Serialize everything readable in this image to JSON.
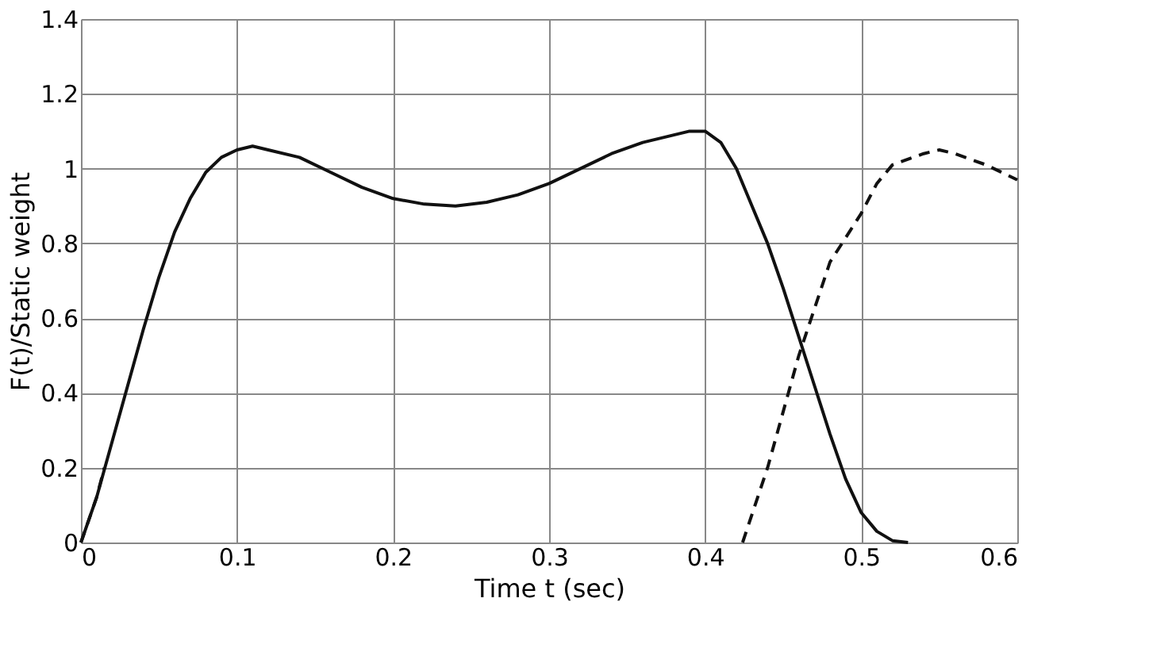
{
  "chart_data": {
    "type": "line",
    "xlabel": "Time t (sec)",
    "ylabel": "F(t)/Static weight",
    "xlim": [
      0,
      0.6
    ],
    "ylim": [
      0,
      1.4
    ],
    "xticks": [
      0,
      0.1,
      0.2,
      0.3,
      0.4,
      0.5,
      0.6
    ],
    "yticks": [
      0,
      0.2,
      0.4,
      0.6,
      0.8,
      1,
      1.2,
      1.4
    ],
    "grid": true,
    "marker": "none",
    "series": [
      {
        "color": "#111111",
        "line_style": "solid",
        "x": [
          0,
          0.01,
          0.02,
          0.03,
          0.04,
          0.05,
          0.06,
          0.07,
          0.08,
          0.09,
          0.1,
          0.11,
          0.12,
          0.14,
          0.16,
          0.18,
          0.2,
          0.22,
          0.24,
          0.26,
          0.28,
          0.3,
          0.32,
          0.34,
          0.36,
          0.38,
          0.39,
          0.4,
          0.41,
          0.42,
          0.43,
          0.44,
          0.45,
          0.46,
          0.47,
          0.48,
          0.49,
          0.5,
          0.51,
          0.52,
          0.53
        ],
        "values": [
          0,
          0.12,
          0.27,
          0.42,
          0.57,
          0.71,
          0.83,
          0.92,
          0.99,
          1.03,
          1.05,
          1.06,
          1.05,
          1.03,
          0.99,
          0.95,
          0.92,
          0.905,
          0.9,
          0.91,
          0.93,
          0.96,
          1.0,
          1.04,
          1.07,
          1.09,
          1.1,
          1.1,
          1.07,
          1.0,
          0.9,
          0.8,
          0.68,
          0.55,
          0.42,
          0.29,
          0.17,
          0.08,
          0.03,
          0.005,
          0
        ]
      },
      {
        "color": "#111111",
        "line_style": "dashed",
        "x": [
          0,
          0.01,
          0.015
        ],
        "values": [
          0,
          0.12,
          0.2
        ]
      },
      {
        "color": "#111111",
        "line_style": "dashed",
        "x": [
          0.424,
          0.44,
          0.46,
          0.48,
          0.5,
          0.51,
          0.52,
          0.54,
          0.55,
          0.56,
          0.58,
          0.6
        ],
        "values": [
          0,
          0.2,
          0.5,
          0.75,
          0.88,
          0.96,
          1.01,
          1.04,
          1.05,
          1.04,
          1.01,
          0.97
        ]
      }
    ]
  }
}
